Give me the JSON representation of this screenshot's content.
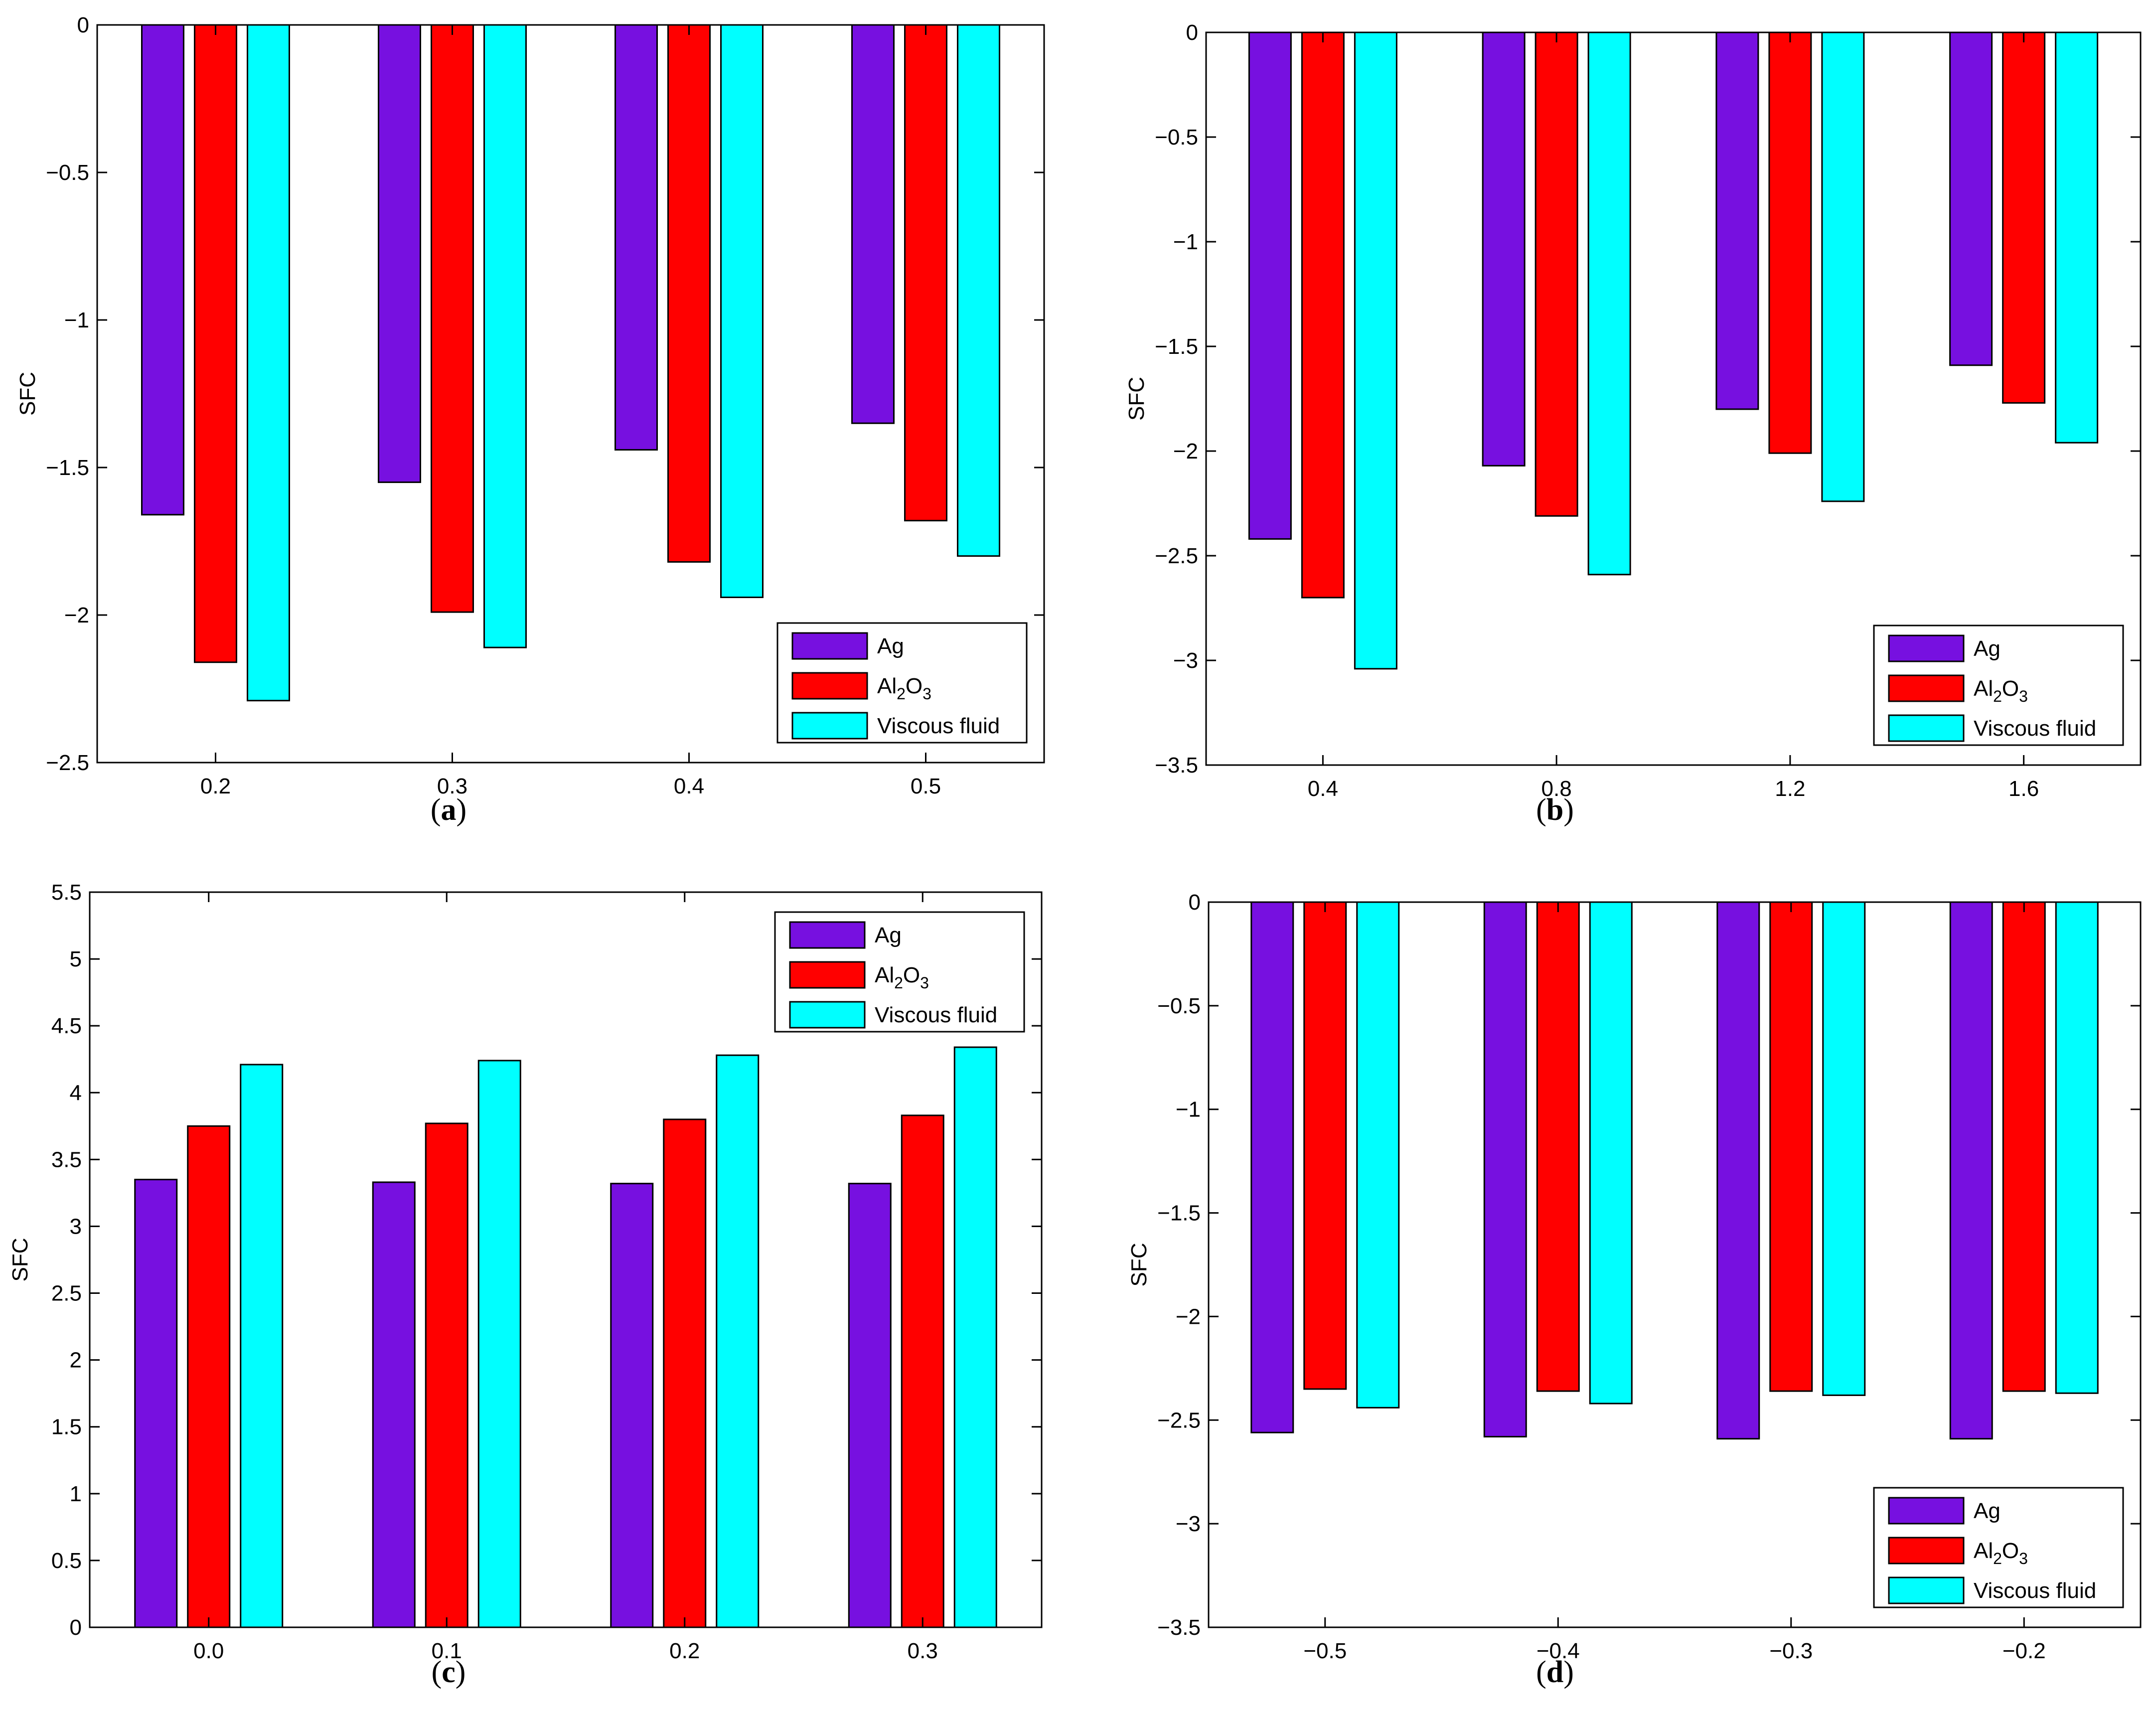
{
  "legend_labels": [
    "Ag",
    "Al2O3",
    "Viscous fluid"
  ],
  "colors": {
    "Ag": "#7710e0",
    "Al2O3": "#ff0000",
    "Viscous fluid": "#00ffff"
  },
  "chart_data": [
    {
      "panel": "a",
      "caption": "a",
      "type": "bar",
      "ylabel": "SFC",
      "categories": [
        "0.2",
        "0.3",
        "0.4",
        "0.5"
      ],
      "ylim": [
        -2.5,
        0
      ],
      "yticks": [
        0,
        -0.5,
        -1,
        -1.5,
        -2,
        -2.5
      ],
      "ytick_labels": [
        "0",
        "-0.5",
        "-1",
        "-1.5",
        "-2",
        "-2.5"
      ],
      "legend_position": "bottom-right",
      "series": [
        {
          "name": "Ag",
          "values": [
            -1.66,
            -1.55,
            -1.44,
            -1.35
          ]
        },
        {
          "name": "Al2O3",
          "values": [
            -2.16,
            -1.99,
            -1.82,
            -1.68
          ]
        },
        {
          "name": "Viscous fluid",
          "values": [
            -2.29,
            -2.11,
            -1.94,
            -1.8
          ]
        }
      ]
    },
    {
      "panel": "b",
      "caption": "b",
      "type": "bar",
      "ylabel": "SFC",
      "categories": [
        "0.4",
        "0.8",
        "1.2",
        "1.6"
      ],
      "ylim": [
        -3.5,
        0
      ],
      "yticks": [
        0,
        -0.5,
        -1,
        -1.5,
        -2,
        -2.5,
        -3,
        -3.5
      ],
      "ytick_labels": [
        "0",
        "-0.5",
        "-1",
        "-1.5",
        "-2",
        "-2.5",
        "-3",
        "-3.5"
      ],
      "legend_position": "bottom-right",
      "series": [
        {
          "name": "Ag",
          "values": [
            -2.42,
            -2.07,
            -1.8,
            -1.59
          ]
        },
        {
          "name": "Al2O3",
          "values": [
            -2.7,
            -2.31,
            -2.01,
            -1.77
          ]
        },
        {
          "name": "Viscous fluid",
          "values": [
            -3.04,
            -2.59,
            -2.24,
            -1.96
          ]
        }
      ]
    },
    {
      "panel": "c",
      "caption": "c",
      "type": "bar",
      "ylabel": "SFC",
      "categories": [
        "0.0",
        "0.1",
        "0.2",
        "0.3"
      ],
      "ylim": [
        0,
        5.5
      ],
      "yticks": [
        0,
        0.5,
        1,
        1.5,
        2,
        2.5,
        3,
        3.5,
        4,
        4.5,
        5,
        5.5
      ],
      "ytick_labels": [
        "0",
        "0.5",
        "1",
        "1.5",
        "2",
        "2.5",
        "3",
        "3.5",
        "4",
        "4.5",
        "5",
        "5.5"
      ],
      "legend_position": "top-right",
      "series": [
        {
          "name": "Ag",
          "values": [
            3.35,
            3.33,
            3.32,
            3.32
          ]
        },
        {
          "name": "Al2O3",
          "values": [
            3.75,
            3.77,
            3.8,
            3.83
          ]
        },
        {
          "name": "Viscous fluid",
          "values": [
            4.21,
            4.24,
            4.28,
            4.34
          ]
        }
      ]
    },
    {
      "panel": "d",
      "caption": "d",
      "type": "bar",
      "ylabel": "SFC",
      "categories": [
        "-0.5",
        "-0.4",
        "-0.3",
        "-0.2"
      ],
      "ylim": [
        -3.5,
        0
      ],
      "yticks": [
        0,
        -0.5,
        -1,
        -1.5,
        -2,
        -2.5,
        -3,
        -3.5
      ],
      "ytick_labels": [
        "0",
        "-0.5",
        "-1",
        "-1.5",
        "-2",
        "-2.5",
        "-3",
        "-3.5"
      ],
      "legend_position": "bottom-right",
      "series": [
        {
          "name": "Ag",
          "values": [
            -2.56,
            -2.58,
            -2.59,
            -2.59
          ]
        },
        {
          "name": "Al2O3",
          "values": [
            -2.35,
            -2.36,
            -2.36,
            -2.36
          ]
        },
        {
          "name": "Viscous fluid",
          "values": [
            -2.44,
            -2.42,
            -2.38,
            -2.37
          ]
        }
      ]
    }
  ]
}
